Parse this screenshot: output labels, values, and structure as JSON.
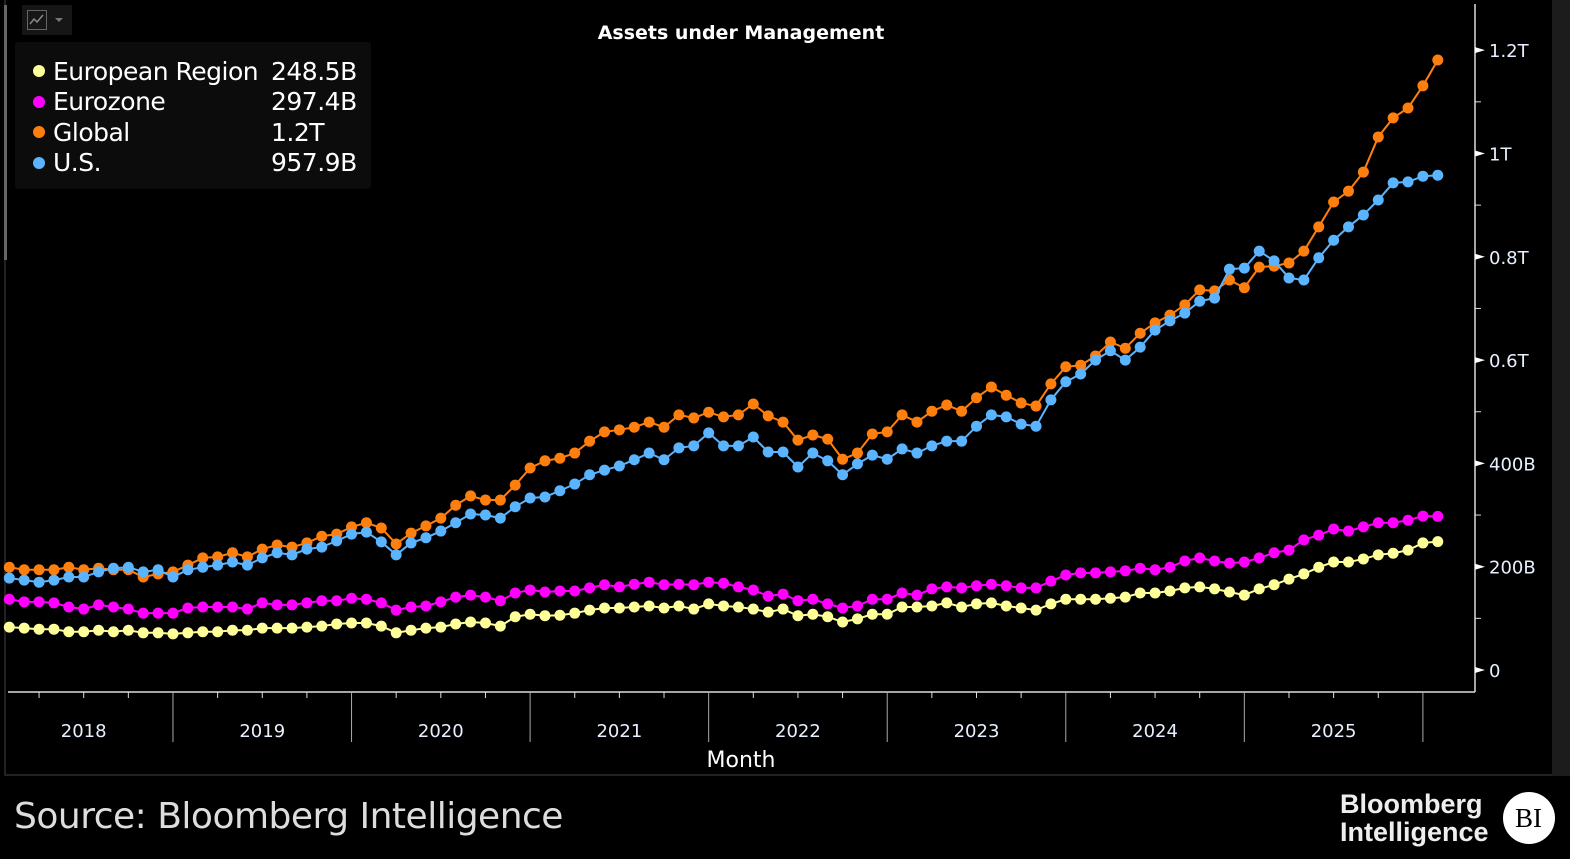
{
  "chart_data": {
    "type": "line",
    "title": "Assets under Management",
    "xlabel": "Month",
    "ylabel": "",
    "ylim": [
      0,
      1300
    ],
    "y_unit": "B",
    "y_ticks": [
      {
        "value": 0,
        "label": "0"
      },
      {
        "value": 200,
        "label": "200B"
      },
      {
        "value": 400,
        "label": "400B"
      },
      {
        "value": 600,
        "label": "0.6T"
      },
      {
        "value": 800,
        "label": "0.8T"
      },
      {
        "value": 1000,
        "label": "1T"
      },
      {
        "value": 1200,
        "label": "1.2T"
      }
    ],
    "x_tick_labels": [
      "2018",
      "2019",
      "2020",
      "2021",
      "2022",
      "2023",
      "2024",
      "2025"
    ],
    "grid": false,
    "legend_placement": "top-left",
    "markers": true,
    "x": [
      "2018-01",
      "2018-02",
      "2018-03",
      "2018-04",
      "2018-05",
      "2018-06",
      "2018-07",
      "2018-08",
      "2018-09",
      "2018-10",
      "2018-11",
      "2018-12",
      "2019-01",
      "2019-02",
      "2019-03",
      "2019-04",
      "2019-05",
      "2019-06",
      "2019-07",
      "2019-08",
      "2019-09",
      "2019-10",
      "2019-11",
      "2019-12",
      "2020-01",
      "2020-02",
      "2020-03",
      "2020-04",
      "2020-05",
      "2020-06",
      "2020-07",
      "2020-08",
      "2020-09",
      "2020-10",
      "2020-11",
      "2020-12",
      "2021-01",
      "2021-02",
      "2021-03",
      "2021-04",
      "2021-05",
      "2021-06",
      "2021-07",
      "2021-08",
      "2021-09",
      "2021-10",
      "2021-11",
      "2021-12",
      "2022-01",
      "2022-02",
      "2022-03",
      "2022-04",
      "2022-05",
      "2022-06",
      "2022-07",
      "2022-08",
      "2022-09",
      "2022-10",
      "2022-11",
      "2022-12",
      "2023-01",
      "2023-02",
      "2023-03",
      "2023-04",
      "2023-05",
      "2023-06",
      "2023-07",
      "2023-08",
      "2023-09",
      "2023-10",
      "2023-11",
      "2023-12",
      "2024-01",
      "2024-02",
      "2024-03",
      "2024-04",
      "2024-05",
      "2024-06",
      "2024-07",
      "2024-08",
      "2024-09",
      "2024-10",
      "2024-11",
      "2024-12",
      "2025-01",
      "2025-02",
      "2025-03",
      "2025-04",
      "2025-05",
      "2025-06",
      "2025-07",
      "2025-08",
      "2025-09",
      "2025-10",
      "2025-11",
      "2025-12",
      "2026-01"
    ],
    "series": [
      {
        "name": "European Region",
        "last_label": "248.5B",
        "color": "#ffff99",
        "values": [
          83,
          81,
          79,
          79,
          74,
          74,
          77,
          74,
          77,
          72,
          72,
          70,
          72,
          74,
          74,
          77,
          77,
          81,
          81,
          81,
          83,
          85,
          89,
          91,
          91,
          85,
          72,
          77,
          81,
          83,
          89,
          93,
          91,
          85,
          103,
          108,
          105,
          106,
          110,
          116,
          120,
          120,
          122,
          124,
          120,
          124,
          118,
          128,
          124,
          122,
          118,
          112,
          118,
          105,
          108,
          103,
          93,
          99,
          108,
          108,
          122,
          122,
          124,
          130,
          122,
          128,
          130,
          124,
          120,
          116,
          128,
          137,
          137,
          137,
          139,
          141,
          149,
          149,
          153,
          159,
          161,
          157,
          151,
          145,
          157,
          165,
          176,
          186,
          199,
          209,
          209,
          215,
          223,
          226,
          232,
          246,
          248.5
        ]
      },
      {
        "name": "Eurozone",
        "last_label": "297.4B",
        "color": "#ff00ff",
        "values": [
          137,
          132,
          132,
          130,
          122,
          118,
          126,
          122,
          118,
          110,
          110,
          110,
          120,
          122,
          122,
          122,
          118,
          130,
          126,
          126,
          130,
          134,
          134,
          139,
          137,
          130,
          116,
          122,
          124,
          132,
          141,
          145,
          141,
          134,
          149,
          155,
          151,
          153,
          153,
          159,
          165,
          161,
          166,
          170,
          165,
          166,
          165,
          170,
          168,
          161,
          155,
          143,
          147,
          134,
          137,
          128,
          120,
          124,
          137,
          137,
          149,
          145,
          157,
          161,
          159,
          163,
          166,
          163,
          159,
          159,
          172,
          184,
          188,
          188,
          190,
          192,
          197,
          194,
          199,
          211,
          217,
          211,
          207,
          209,
          217,
          227,
          232,
          252,
          261,
          273,
          269,
          277,
          285,
          285,
          290,
          298,
          297.4
        ]
      },
      {
        "name": "Global",
        "last_label": "1.2T",
        "color": "#ff7f0e",
        "values": [
          199,
          194,
          194,
          194,
          199,
          194,
          197,
          194,
          194,
          180,
          186,
          190,
          203,
          217,
          219,
          227,
          219,
          234,
          242,
          238,
          246,
          259,
          263,
          277,
          285,
          275,
          244,
          265,
          279,
          294,
          319,
          337,
          329,
          329,
          358,
          391,
          405,
          410,
          420,
          443,
          461,
          465,
          470,
          480,
          470,
          494,
          488,
          499,
          490,
          494,
          515,
          492,
          480,
          445,
          455,
          447,
          408,
          420,
          457,
          461,
          494,
          480,
          501,
          513,
          501,
          527,
          548,
          532,
          517,
          511,
          554,
          587,
          590,
          608,
          635,
          623,
          652,
          672,
          687,
          707,
          736,
          734,
          755,
          740,
          780,
          782,
          788,
          811,
          858,
          906,
          927,
          964,
          1032,
          1069,
          1088,
          1131,
          1181
        ]
      },
      {
        "name": "U.S.",
        "last_label": "957.9B",
        "color": "#5ab4ff",
        "values": [
          178,
          174,
          170,
          174,
          180,
          180,
          190,
          197,
          199,
          190,
          194,
          180,
          194,
          199,
          203,
          209,
          203,
          217,
          227,
          223,
          234,
          238,
          250,
          263,
          267,
          248,
          223,
          246,
          256,
          269,
          285,
          302,
          300,
          294,
          316,
          333,
          335,
          347,
          360,
          378,
          387,
          395,
          407,
          420,
          407,
          430,
          434,
          459,
          434,
          434,
          451,
          422,
          422,
          393,
          420,
          405,
          378,
          399,
          416,
          408,
          428,
          420,
          434,
          443,
          443,
          472,
          494,
          490,
          476,
          472,
          523,
          558,
          573,
          600,
          618,
          600,
          625,
          658,
          676,
          691,
          714,
          720,
          776,
          778,
          811,
          792,
          759,
          755,
          798,
          832,
          858,
          881,
          910,
          943,
          945,
          956,
          957.9
        ]
      }
    ]
  },
  "toolbar": {
    "chart_type_icon": "line-chart-icon",
    "dropdown_icon": "caret-down-icon"
  },
  "footer": {
    "source": "Source: Bloomberg Intelligence",
    "logo_line1": "Bloomberg",
    "logo_line2": "Intelligence",
    "logo_badge": "BI"
  }
}
